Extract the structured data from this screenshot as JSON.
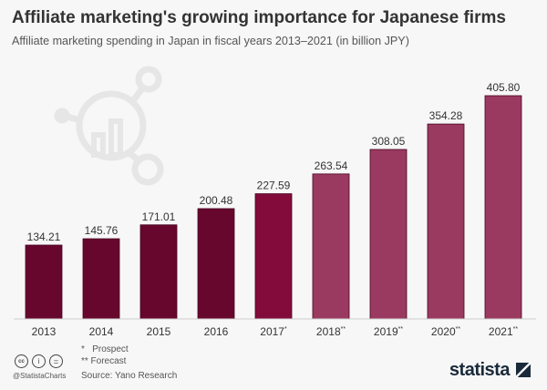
{
  "header": {
    "title": "Affiliate marketing's growing importance for Japanese firms",
    "subtitle": "Affiliate marketing spending in Japan in fiscal years 2013–2021 (in billion JPY)"
  },
  "chart_data": {
    "type": "bar",
    "title": "Affiliate marketing's growing importance for Japanese firms",
    "subtitle": "Affiliate marketing spending in Japan in fiscal years 2013–2021 (in billion JPY)",
    "categories": [
      "2013",
      "2014",
      "2015",
      "2016",
      "2017*",
      "2018**",
      "2019**",
      "2020**",
      "2021**"
    ],
    "values": [
      134.21,
      145.76,
      171.01,
      200.48,
      227.59,
      263.54,
      308.05,
      354.28,
      405.8
    ],
    "data_labels": [
      "134.21",
      "145.76",
      "171.01",
      "200.48",
      "227.59",
      "263.54",
      "308.05",
      "354.28",
      "405.80"
    ],
    "colors": [
      "#67072d",
      "#67072d",
      "#67072d",
      "#67072d",
      "#820b3b",
      "#9b3a61",
      "#9b3a61",
      "#9b3a61",
      "#9b3a61"
    ],
    "xlabel": "",
    "ylabel": "",
    "ylim": [
      0,
      410
    ],
    "grid": false
  },
  "footer": {
    "notes": [
      "*   Prospect",
      "** Forecast"
    ],
    "source": "Source: Yano Research",
    "handle": "@StatistaCharts",
    "brand": "statista"
  },
  "icons": [
    "cc-icon",
    "by-icon",
    "nd-icon",
    "statista-logo-icon",
    "chart-network-watermark-icon"
  ]
}
